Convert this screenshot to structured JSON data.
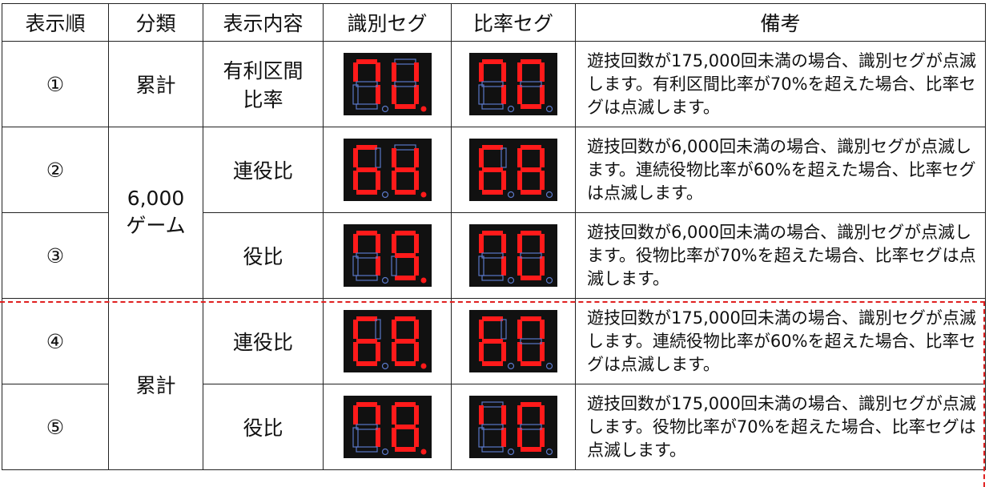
{
  "header": [
    "表示順",
    "分類",
    "表示内容",
    "識別セグ",
    "比率セグ",
    "備考"
  ],
  "groups": [
    {
      "category": "累計",
      "rows": [
        {
          "order": "①",
          "content": "有利区間\n比率",
          "remarks": "遊技回数が175,000回未満の場合、識別セグが点滅します。有利区間比率が70%を超えた場合、比率セグは点滅します。"
        }
      ]
    },
    {
      "category": "6,000\nゲーム",
      "rows": [
        {
          "order": "②",
          "content": "連役比",
          "remarks": "遊技回数が6,000回未満の場合、識別セグが点滅します。連続役物比率が60%を超えた場合、比率セグは点滅します。"
        },
        {
          "order": "③",
          "content": "役比",
          "remarks": "遊技回数が6,000回未満の場合、識別セグが点滅します。役物比率が70%を超えた場合、比率セグは点滅します。"
        }
      ]
    },
    {
      "category": "累計",
      "rows": [
        {
          "order": "④",
          "content": "連役比",
          "remarks": "遊技回数が175,000回未満の場合、識別セグが点滅します。連続役物比率が60%を超えた場合、比率セグは点滅します。"
        },
        {
          "order": "⑤",
          "content": "役比",
          "remarks": "遊技回数が175,000回未満の場合、識別セグが点滅します。役物比率が70%を超えた場合、比率セグは点滅します。"
        }
      ]
    }
  ]
}
